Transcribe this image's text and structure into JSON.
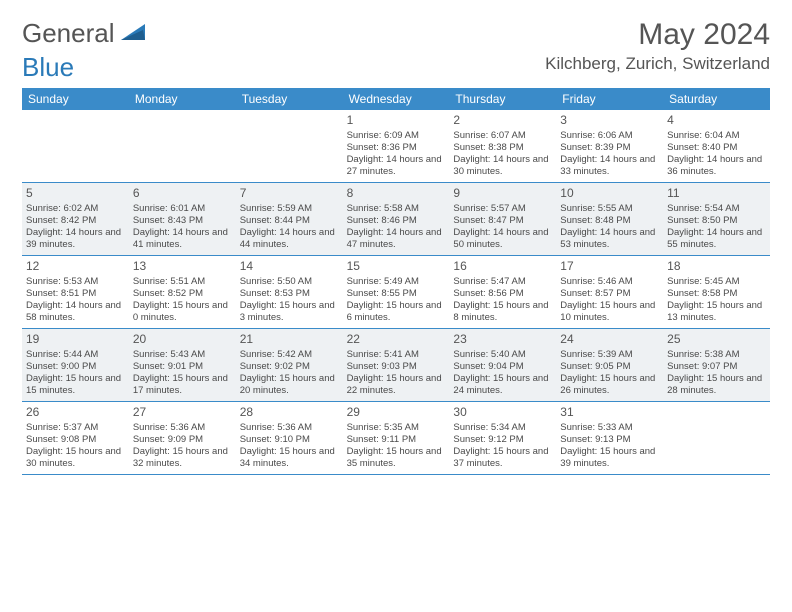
{
  "logo": {
    "text1": "General",
    "text2": "Blue"
  },
  "title": "May 2024",
  "location": "Kilchberg, Zurich, Switzerland",
  "colors": {
    "header_bg": "#3a8bc9",
    "header_text": "#ffffff",
    "alt_row_bg": "#eef1f3",
    "rule": "#3a8bc9",
    "logo_gray": "#555555",
    "logo_blue": "#2a7ab8"
  },
  "dayNames": [
    "Sunday",
    "Monday",
    "Tuesday",
    "Wednesday",
    "Thursday",
    "Friday",
    "Saturday"
  ],
  "startOffset": 3,
  "days": [
    {
      "n": 1,
      "sunrise": "6:09 AM",
      "sunset": "8:36 PM",
      "daylight": "14 hours and 27 minutes."
    },
    {
      "n": 2,
      "sunrise": "6:07 AM",
      "sunset": "8:38 PM",
      "daylight": "14 hours and 30 minutes."
    },
    {
      "n": 3,
      "sunrise": "6:06 AM",
      "sunset": "8:39 PM",
      "daylight": "14 hours and 33 minutes."
    },
    {
      "n": 4,
      "sunrise": "6:04 AM",
      "sunset": "8:40 PM",
      "daylight": "14 hours and 36 minutes."
    },
    {
      "n": 5,
      "sunrise": "6:02 AM",
      "sunset": "8:42 PM",
      "daylight": "14 hours and 39 minutes."
    },
    {
      "n": 6,
      "sunrise": "6:01 AM",
      "sunset": "8:43 PM",
      "daylight": "14 hours and 41 minutes."
    },
    {
      "n": 7,
      "sunrise": "5:59 AM",
      "sunset": "8:44 PM",
      "daylight": "14 hours and 44 minutes."
    },
    {
      "n": 8,
      "sunrise": "5:58 AM",
      "sunset": "8:46 PM",
      "daylight": "14 hours and 47 minutes."
    },
    {
      "n": 9,
      "sunrise": "5:57 AM",
      "sunset": "8:47 PM",
      "daylight": "14 hours and 50 minutes."
    },
    {
      "n": 10,
      "sunrise": "5:55 AM",
      "sunset": "8:48 PM",
      "daylight": "14 hours and 53 minutes."
    },
    {
      "n": 11,
      "sunrise": "5:54 AM",
      "sunset": "8:50 PM",
      "daylight": "14 hours and 55 minutes."
    },
    {
      "n": 12,
      "sunrise": "5:53 AM",
      "sunset": "8:51 PM",
      "daylight": "14 hours and 58 minutes."
    },
    {
      "n": 13,
      "sunrise": "5:51 AM",
      "sunset": "8:52 PM",
      "daylight": "15 hours and 0 minutes."
    },
    {
      "n": 14,
      "sunrise": "5:50 AM",
      "sunset": "8:53 PM",
      "daylight": "15 hours and 3 minutes."
    },
    {
      "n": 15,
      "sunrise": "5:49 AM",
      "sunset": "8:55 PM",
      "daylight": "15 hours and 6 minutes."
    },
    {
      "n": 16,
      "sunrise": "5:47 AM",
      "sunset": "8:56 PM",
      "daylight": "15 hours and 8 minutes."
    },
    {
      "n": 17,
      "sunrise": "5:46 AM",
      "sunset": "8:57 PM",
      "daylight": "15 hours and 10 minutes."
    },
    {
      "n": 18,
      "sunrise": "5:45 AM",
      "sunset": "8:58 PM",
      "daylight": "15 hours and 13 minutes."
    },
    {
      "n": 19,
      "sunrise": "5:44 AM",
      "sunset": "9:00 PM",
      "daylight": "15 hours and 15 minutes."
    },
    {
      "n": 20,
      "sunrise": "5:43 AM",
      "sunset": "9:01 PM",
      "daylight": "15 hours and 17 minutes."
    },
    {
      "n": 21,
      "sunrise": "5:42 AM",
      "sunset": "9:02 PM",
      "daylight": "15 hours and 20 minutes."
    },
    {
      "n": 22,
      "sunrise": "5:41 AM",
      "sunset": "9:03 PM",
      "daylight": "15 hours and 22 minutes."
    },
    {
      "n": 23,
      "sunrise": "5:40 AM",
      "sunset": "9:04 PM",
      "daylight": "15 hours and 24 minutes."
    },
    {
      "n": 24,
      "sunrise": "5:39 AM",
      "sunset": "9:05 PM",
      "daylight": "15 hours and 26 minutes."
    },
    {
      "n": 25,
      "sunrise": "5:38 AM",
      "sunset": "9:07 PM",
      "daylight": "15 hours and 28 minutes."
    },
    {
      "n": 26,
      "sunrise": "5:37 AM",
      "sunset": "9:08 PM",
      "daylight": "15 hours and 30 minutes."
    },
    {
      "n": 27,
      "sunrise": "5:36 AM",
      "sunset": "9:09 PM",
      "daylight": "15 hours and 32 minutes."
    },
    {
      "n": 28,
      "sunrise": "5:36 AM",
      "sunset": "9:10 PM",
      "daylight": "15 hours and 34 minutes."
    },
    {
      "n": 29,
      "sunrise": "5:35 AM",
      "sunset": "9:11 PM",
      "daylight": "15 hours and 35 minutes."
    },
    {
      "n": 30,
      "sunrise": "5:34 AM",
      "sunset": "9:12 PM",
      "daylight": "15 hours and 37 minutes."
    },
    {
      "n": 31,
      "sunrise": "5:33 AM",
      "sunset": "9:13 PM",
      "daylight": "15 hours and 39 minutes."
    }
  ],
  "labels": {
    "sunrise": "Sunrise:",
    "sunset": "Sunset:",
    "daylight": "Daylight:"
  }
}
